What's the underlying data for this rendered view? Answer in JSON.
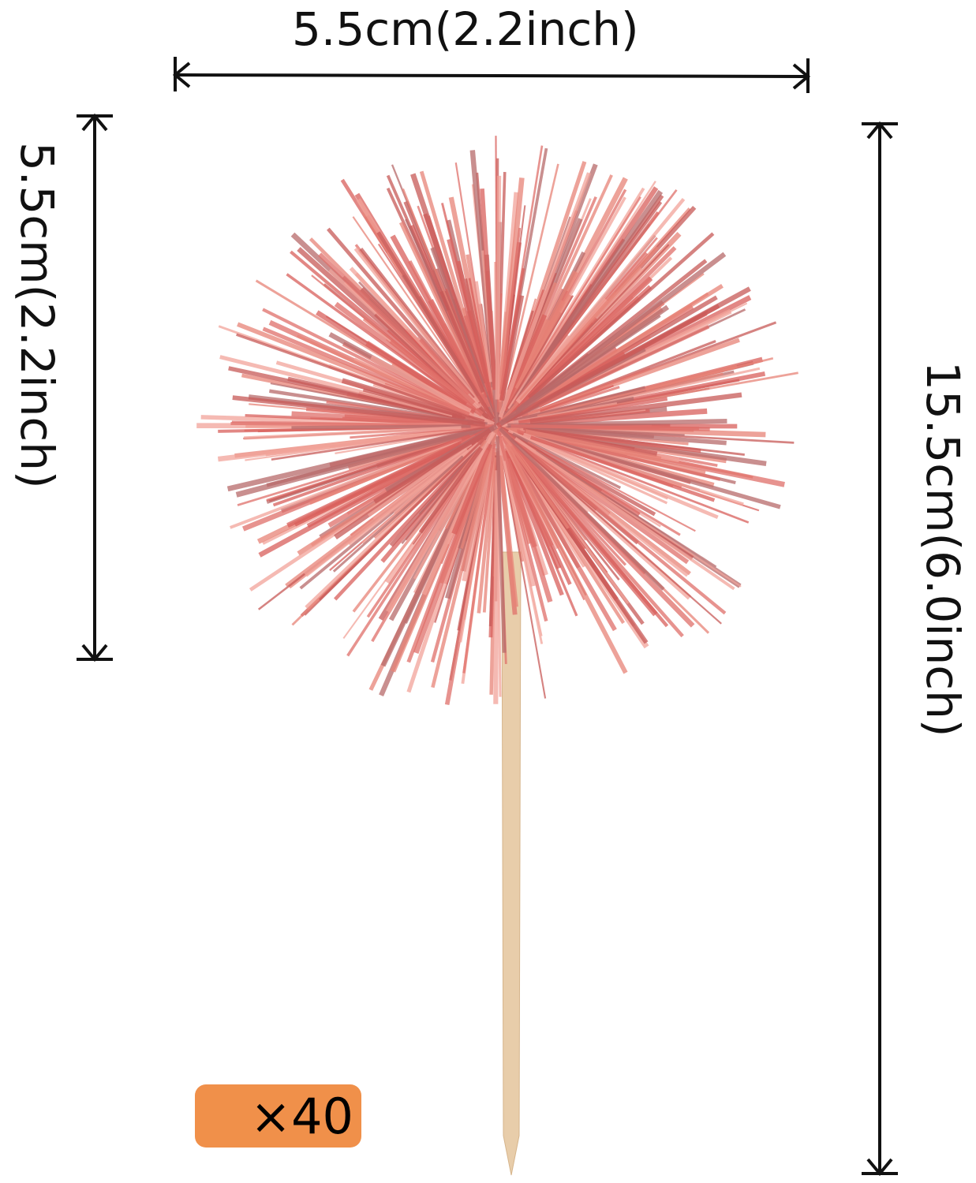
{
  "dimensions": {
    "width_label": "5.5cm(2.2inch)",
    "height_head_label": "5.5cm(2.2inch)",
    "total_height_label": "15.5cm(6.0inch)"
  },
  "quantity_badge": {
    "text": "×40",
    "color": "#F0904A"
  },
  "colors": {
    "tinsel": "#E0706A",
    "stick": "#E8CDAA"
  }
}
